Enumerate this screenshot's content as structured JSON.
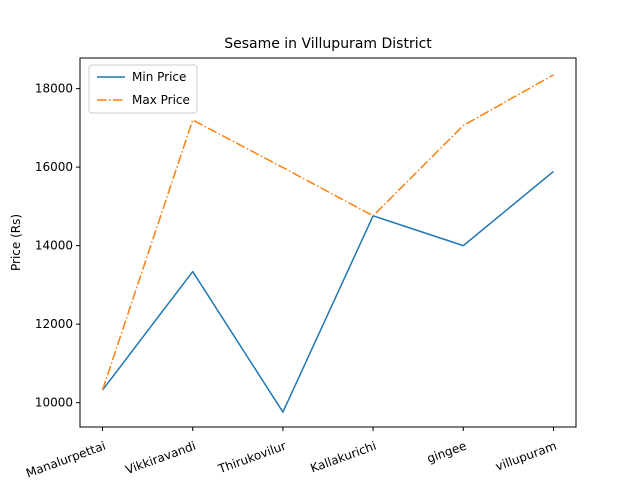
{
  "chart_data": {
    "type": "line",
    "title": "Sesame in Villupuram District",
    "xlabel": "",
    "ylabel": "Price (Rs)",
    "categories": [
      "Manalurpettai",
      "Vikkiravandi",
      "Thirukovilur",
      "Kallakurichi",
      "gingee",
      "villupuram"
    ],
    "series": [
      {
        "name": "Min Price",
        "values": [
          10320,
          13340,
          9760,
          14760,
          14000,
          15890
        ],
        "color": "#1f77b4",
        "style": "solid"
      },
      {
        "name": "Max Price",
        "values": [
          10320,
          17200,
          15990,
          14760,
          17060,
          18350
        ],
        "color": "#ff7f0e",
        "style": "dashdot"
      }
    ],
    "ylim": [
      9380,
      18780
    ],
    "yticks": [
      10000,
      12000,
      14000,
      16000,
      18000
    ],
    "ytick_labels": [
      "10000",
      "12000",
      "14000",
      "16000",
      "18000"
    ],
    "grid": false,
    "legend_position": "top-left"
  }
}
